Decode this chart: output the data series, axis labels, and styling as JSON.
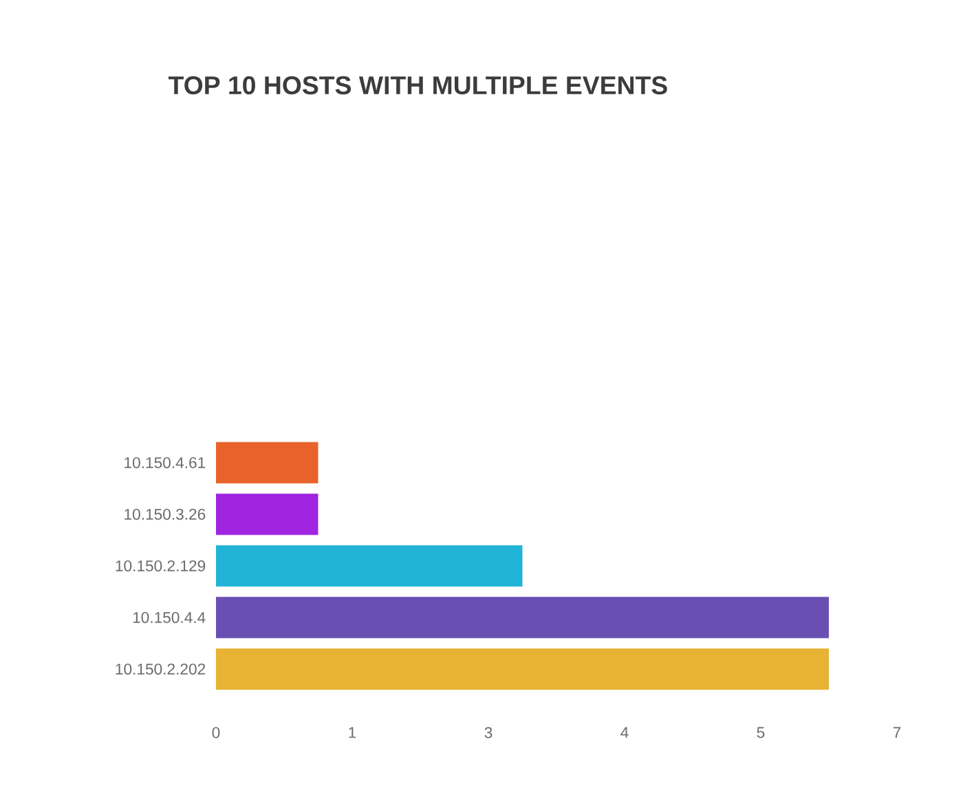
{
  "chart_data": {
    "type": "bar",
    "orientation": "horizontal",
    "title": "TOP 10 HOSTS WITH MULTIPLE EVENTS",
    "categories": [
      null,
      null,
      null,
      null,
      null,
      "10.150.4.61",
      "10.150.3.26",
      "10.150.2.129",
      "10.150.4.4",
      "10.150.2.202"
    ],
    "values": [
      null,
      null,
      null,
      null,
      null,
      1,
      1,
      3,
      6,
      6
    ],
    "colors": [
      "#e8622a",
      "#e8622a",
      "#e8622a",
      "#e8622a",
      "#e8622a",
      "#e8622a",
      "#a024e0",
      "#22b4d6",
      "#6a4fb2",
      "#e8b232"
    ],
    "xlim": [
      0,
      6.667
    ],
    "xticks": [
      0,
      {
        "value": 1.333,
        "label": "1"
      },
      {
        "value": 2.667,
        "label": "3"
      },
      4,
      {
        "value": 5.333,
        "label": "5"
      },
      {
        "value": 6.667,
        "label": "7"
      }
    ]
  }
}
